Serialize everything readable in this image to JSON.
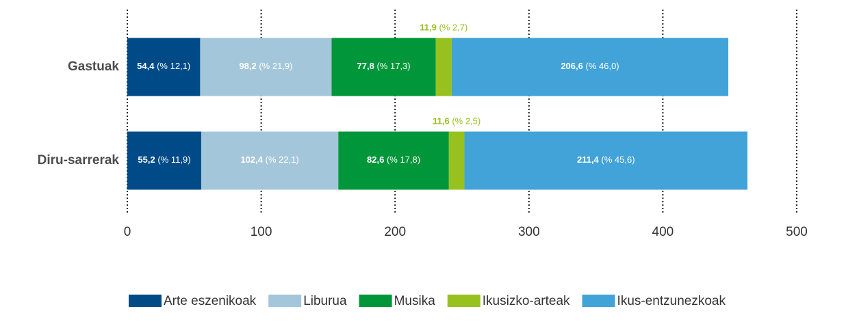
{
  "chart_data": {
    "type": "stacked-bar-horizontal",
    "categories": [
      "Gastuak",
      "Diru-sarrerak"
    ],
    "series": [
      {
        "name": "Arte eszenikoak",
        "color": "#004b87",
        "values": [
          54.4,
          55.2
        ],
        "value_labels": [
          "54,4",
          "55,2"
        ],
        "share_labels": [
          "(% 12,1)",
          "(% 11,9)"
        ]
      },
      {
        "name": "Liburua",
        "color": "#a4c6da",
        "values": [
          98.2,
          102.4
        ],
        "value_labels": [
          "98,2",
          "102,4"
        ],
        "share_labels": [
          "(% 21,9)",
          "(% 22,1)"
        ]
      },
      {
        "name": "Musika",
        "color": "#009639",
        "values": [
          77.8,
          82.6
        ],
        "value_labels": [
          "77,8",
          "82,6"
        ],
        "share_labels": [
          "(% 17,3)",
          "(% 17,8)"
        ]
      },
      {
        "name": "Ikusizko-arteak",
        "color": "#97c11f",
        "values": [
          11.9,
          11.6
        ],
        "value_labels": [
          "11,9",
          "11,6"
        ],
        "share_labels": [
          "(% 2,7)",
          "(% 2,5)"
        ]
      },
      {
        "name": "Ikus-entzunezkoak",
        "color": "#41a3d8",
        "values": [
          206.6,
          211.4
        ],
        "value_labels": [
          "206,6",
          "211,4"
        ],
        "share_labels": [
          "(% 46,0)",
          "(% 45,6)"
        ]
      }
    ],
    "xlim": [
      0,
      500
    ],
    "xticks": [
      0,
      100,
      200,
      300,
      400,
      500
    ],
    "grid": true,
    "legend": "bottom"
  }
}
